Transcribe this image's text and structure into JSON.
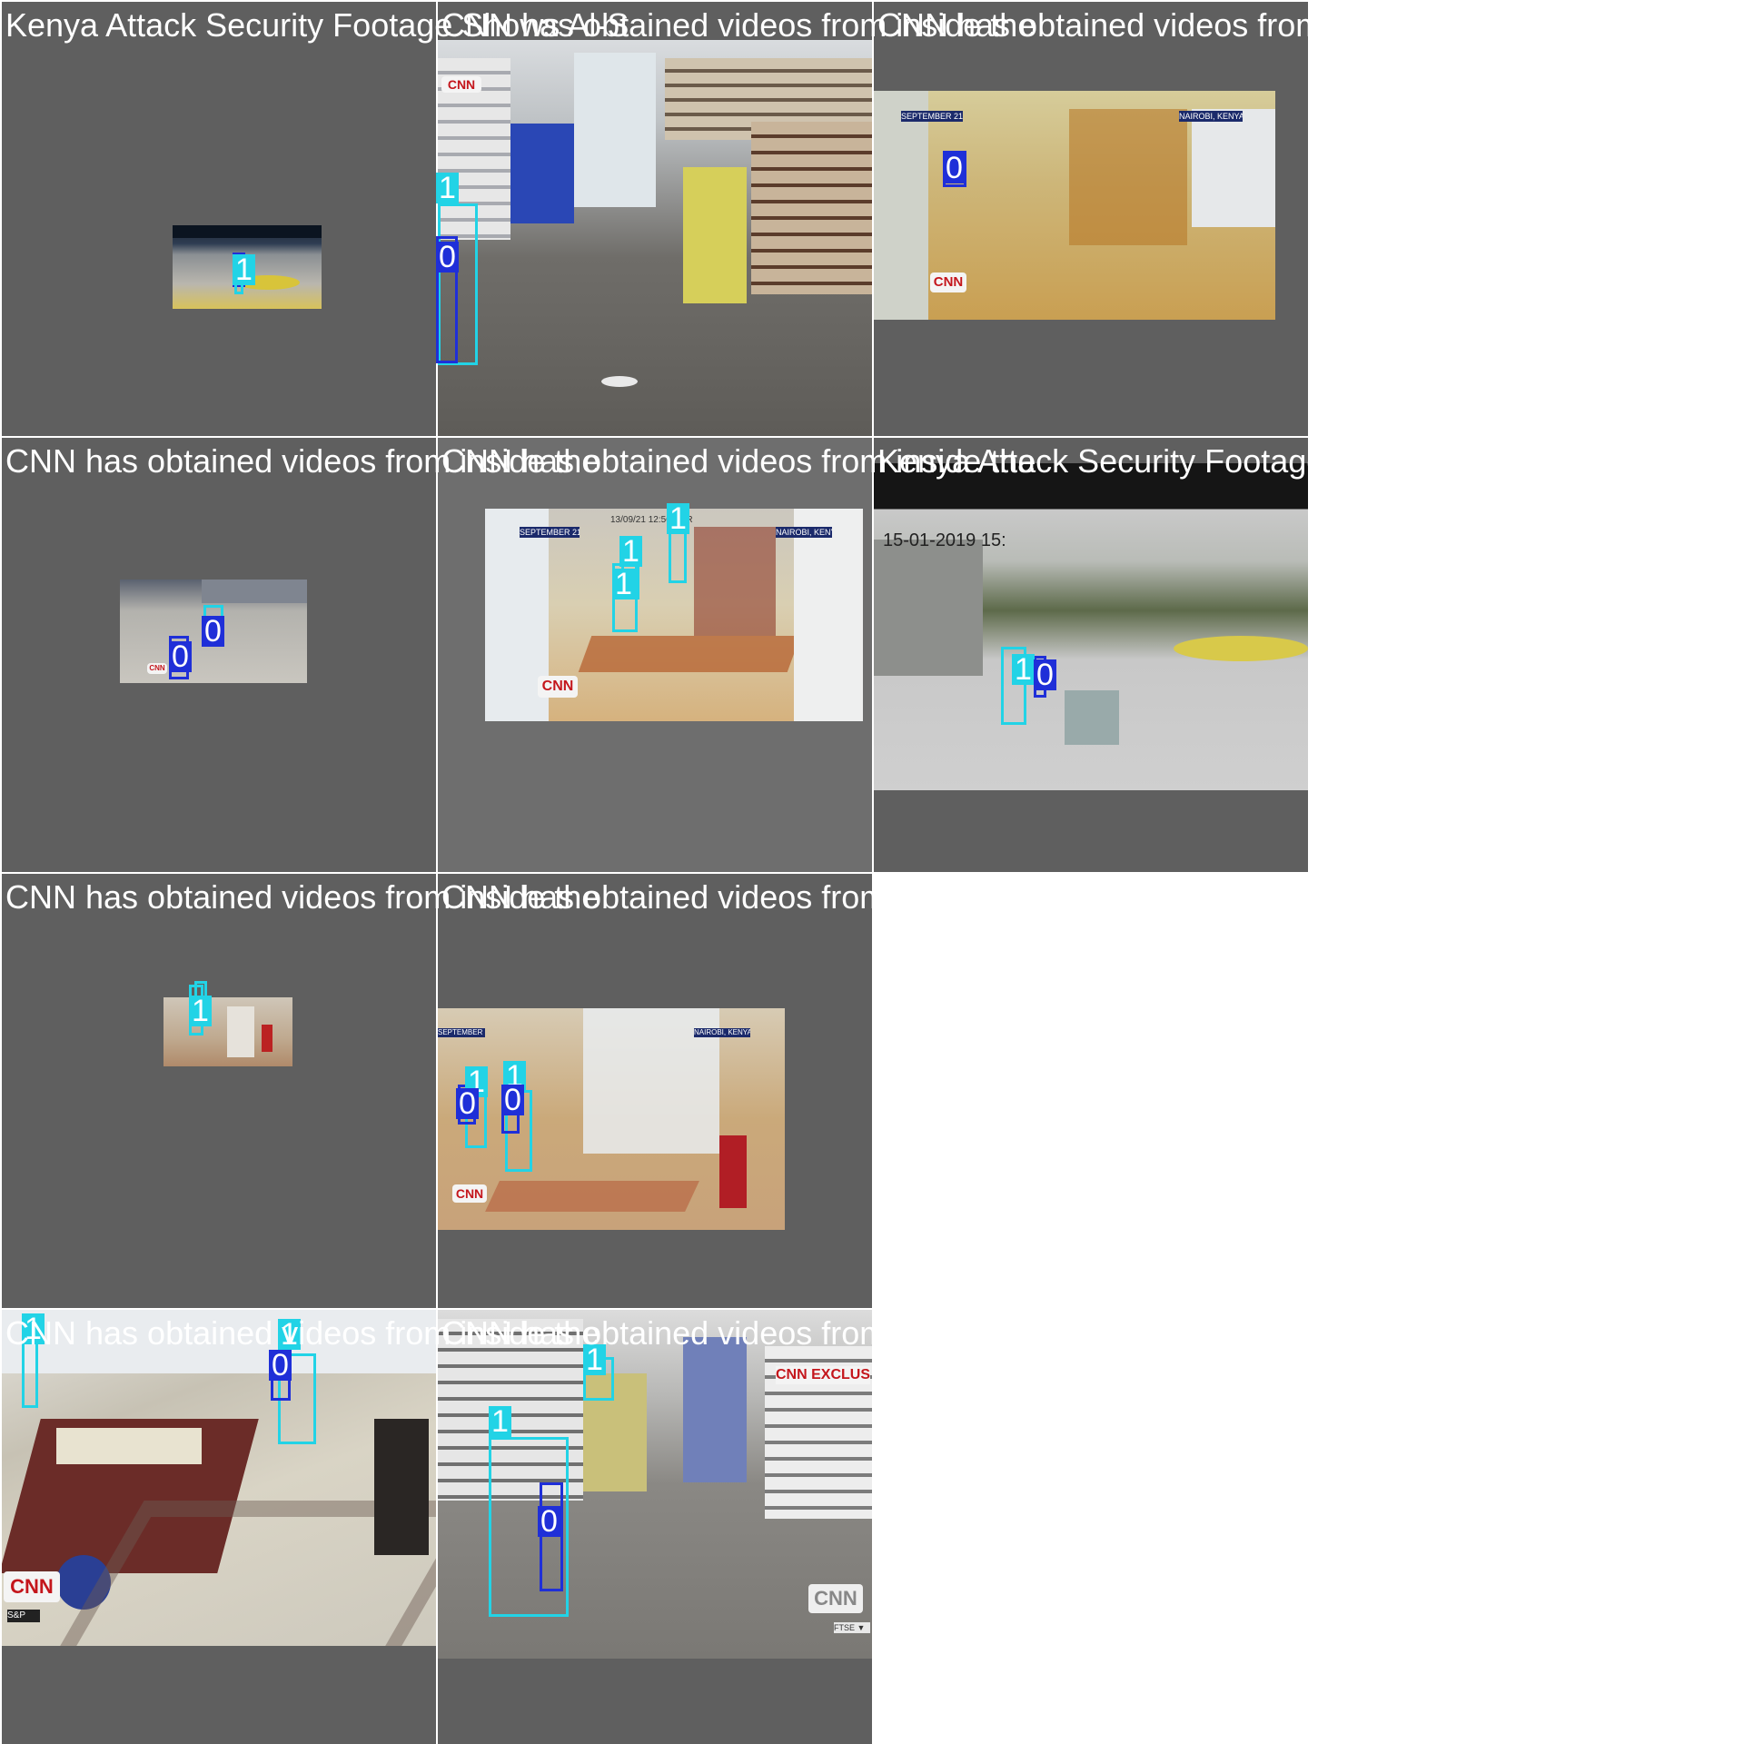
{
  "captions": {
    "kenya": "Kenya Attack Security Footage Shows Al-S",
    "cnn": "CNN has obtained videos from inside the"
  },
  "detection_labels": {
    "class0": "0",
    "class1": "1"
  },
  "overlays": {
    "cnn_logo": "CNN",
    "cnn_exclusive": "CNN EXCLUS",
    "september": "SEPTEMBER 21",
    "nairobi": "NAIROBI, KENYA",
    "ftse": "FTSE ▼",
    "dvr_timestamp": "13/09/21 12:56 DVR",
    "cctv_date": "15-01-2019 15:",
    "sp": "S&P"
  },
  "colors": {
    "class0": "#1f2fd8",
    "class1": "#22d3e6",
    "tile_bg": "#5f5f5f"
  }
}
